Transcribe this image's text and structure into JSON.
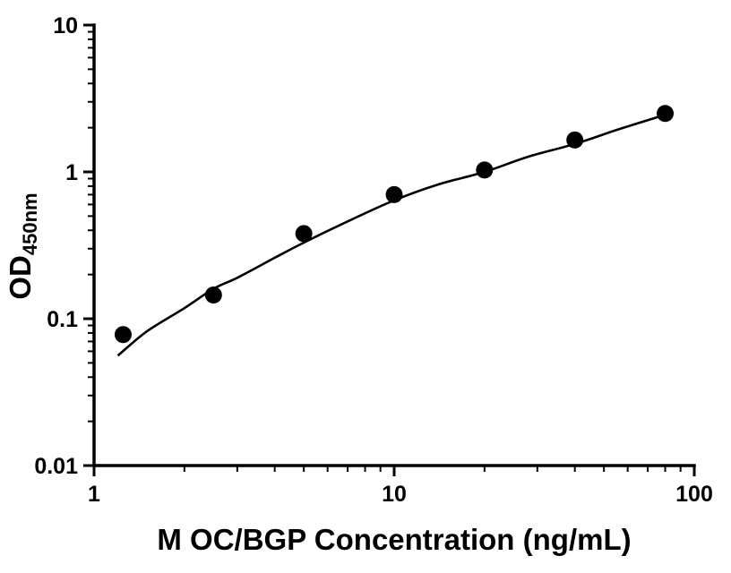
{
  "chart_data": {
    "type": "scatter",
    "title": "",
    "xlabel": "M OC/BGP Concentration (ng/mL)",
    "ylabel": "OD450nm",
    "ylabel_main": "OD",
    "ylabel_sub": "450nm",
    "x_scale": "log",
    "y_scale": "log",
    "xlim": [
      1,
      100
    ],
    "ylim": [
      0.01,
      10
    ],
    "grid": false,
    "legend_position": "none",
    "axis_color": "#000000",
    "x_ticks": [
      {
        "value": 1,
        "label": "1"
      },
      {
        "value": 10,
        "label": "10"
      },
      {
        "value": 100,
        "label": "100"
      }
    ],
    "y_ticks": [
      {
        "value": 0.01,
        "label": "0.01"
      },
      {
        "value": 0.1,
        "label": "0.1"
      },
      {
        "value": 1,
        "label": "1"
      },
      {
        "value": 10,
        "label": "10"
      }
    ],
    "series": [
      {
        "name": "fitted-curve",
        "type": "line",
        "color": "#000000",
        "x": [
          1.2,
          1.5,
          2,
          2.5,
          3,
          4,
          5,
          7,
          10,
          14,
          20,
          28,
          40,
          56,
          80
        ],
        "y": [
          0.056,
          0.082,
          0.118,
          0.16,
          0.19,
          0.26,
          0.33,
          0.46,
          0.64,
          0.82,
          1.0,
          1.27,
          1.55,
          1.95,
          2.45
        ]
      },
      {
        "name": "standards",
        "type": "scatter",
        "marker": "filled-circle",
        "color": "#000000",
        "x": [
          1.25,
          2.5,
          5,
          10,
          20,
          40,
          80
        ],
        "y": [
          0.078,
          0.145,
          0.38,
          0.7,
          1.03,
          1.65,
          2.5
        ]
      }
    ]
  }
}
